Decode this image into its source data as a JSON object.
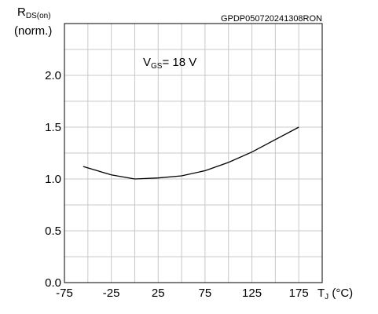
{
  "chart_data": {
    "type": "line",
    "code": "GPDP050720241308RON",
    "ylabel_main": "R",
    "ylabel_sub": "DS(on)",
    "ylabel_unit": "(norm.)",
    "xlabel_main": "T",
    "xlabel_sub": "J",
    "xlabel_unit": " (°C)",
    "annotation_main": "V",
    "annotation_sub": "GS",
    "annotation_rest": "= 18 V",
    "xlim": [
      -75,
      200
    ],
    "ylim": [
      0,
      2.5
    ],
    "xticks": [
      -75,
      -25,
      25,
      75,
      125,
      175
    ],
    "xtick_labels": [
      "-75",
      "-25",
      "25",
      "75",
      "125",
      "175"
    ],
    "yticks": [
      0,
      0.5,
      1.0,
      1.5,
      2.0
    ],
    "ytick_labels": [
      "0.0",
      "0.5",
      "1.0",
      "1.5",
      "2.0"
    ],
    "grid": true,
    "series": [
      {
        "x": [
          -55,
          -25,
          0,
          25,
          50,
          75,
          100,
          125,
          150,
          175
        ],
        "y": [
          1.12,
          1.04,
          1.0,
          1.01,
          1.03,
          1.08,
          1.16,
          1.26,
          1.38,
          1.5
        ]
      }
    ]
  }
}
